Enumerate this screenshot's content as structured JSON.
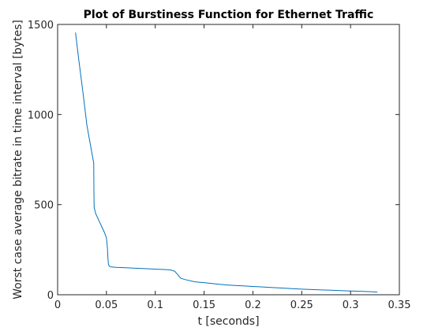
{
  "chart_data": {
    "type": "line",
    "title": "Plot of Burstiness Function for Ethernet Traffic",
    "xlabel": "t [seconds]",
    "ylabel": "Worst case average bitrate in time interval [bytes]",
    "xlim": [
      0,
      0.35
    ],
    "ylim": [
      0,
      1500
    ],
    "xticks": [
      0,
      0.05,
      0.1,
      0.15,
      0.2,
      0.25,
      0.3,
      0.35
    ],
    "xtick_labels": [
      "0",
      "0.05",
      "0.1",
      "0.15",
      "0.2",
      "0.25",
      "0.3",
      "0.35"
    ],
    "yticks": [
      0,
      500,
      1000,
      1500
    ],
    "ytick_labels": [
      "0",
      "500",
      "1000",
      "1500"
    ],
    "grid": false,
    "legend": "none",
    "series": [
      {
        "color": "#0072bd",
        "x": [
          0.0183,
          0.022,
          0.026,
          0.03,
          0.034,
          0.037,
          0.0372,
          0.0374,
          0.039,
          0.042,
          0.045,
          0.048,
          0.05,
          0.051,
          0.0515,
          0.052,
          0.053,
          0.055,
          0.06,
          0.07,
          0.08,
          0.09,
          0.1,
          0.11,
          0.116,
          0.12,
          0.123,
          0.126,
          0.13,
          0.14,
          0.15,
          0.16,
          0.17,
          0.18,
          0.19,
          0.2,
          0.21,
          0.22,
          0.23,
          0.24,
          0.25,
          0.26,
          0.27,
          0.28,
          0.29,
          0.3,
          0.31,
          0.32,
          0.3275
        ],
        "y": [
          1455,
          1290,
          1120,
          940,
          820,
          730,
          560,
          485,
          450,
          415,
          380,
          345,
          315,
          260,
          205,
          170,
          158,
          154,
          152,
          150,
          147,
          145,
          142,
          140,
          137,
          130,
          112,
          92,
          85,
          72,
          67,
          61,
          56,
          52,
          49,
          46,
          43,
          40,
          37,
          34,
          31,
          29,
          27,
          25,
          23,
          21,
          19,
          17,
          15
        ]
      }
    ]
  }
}
